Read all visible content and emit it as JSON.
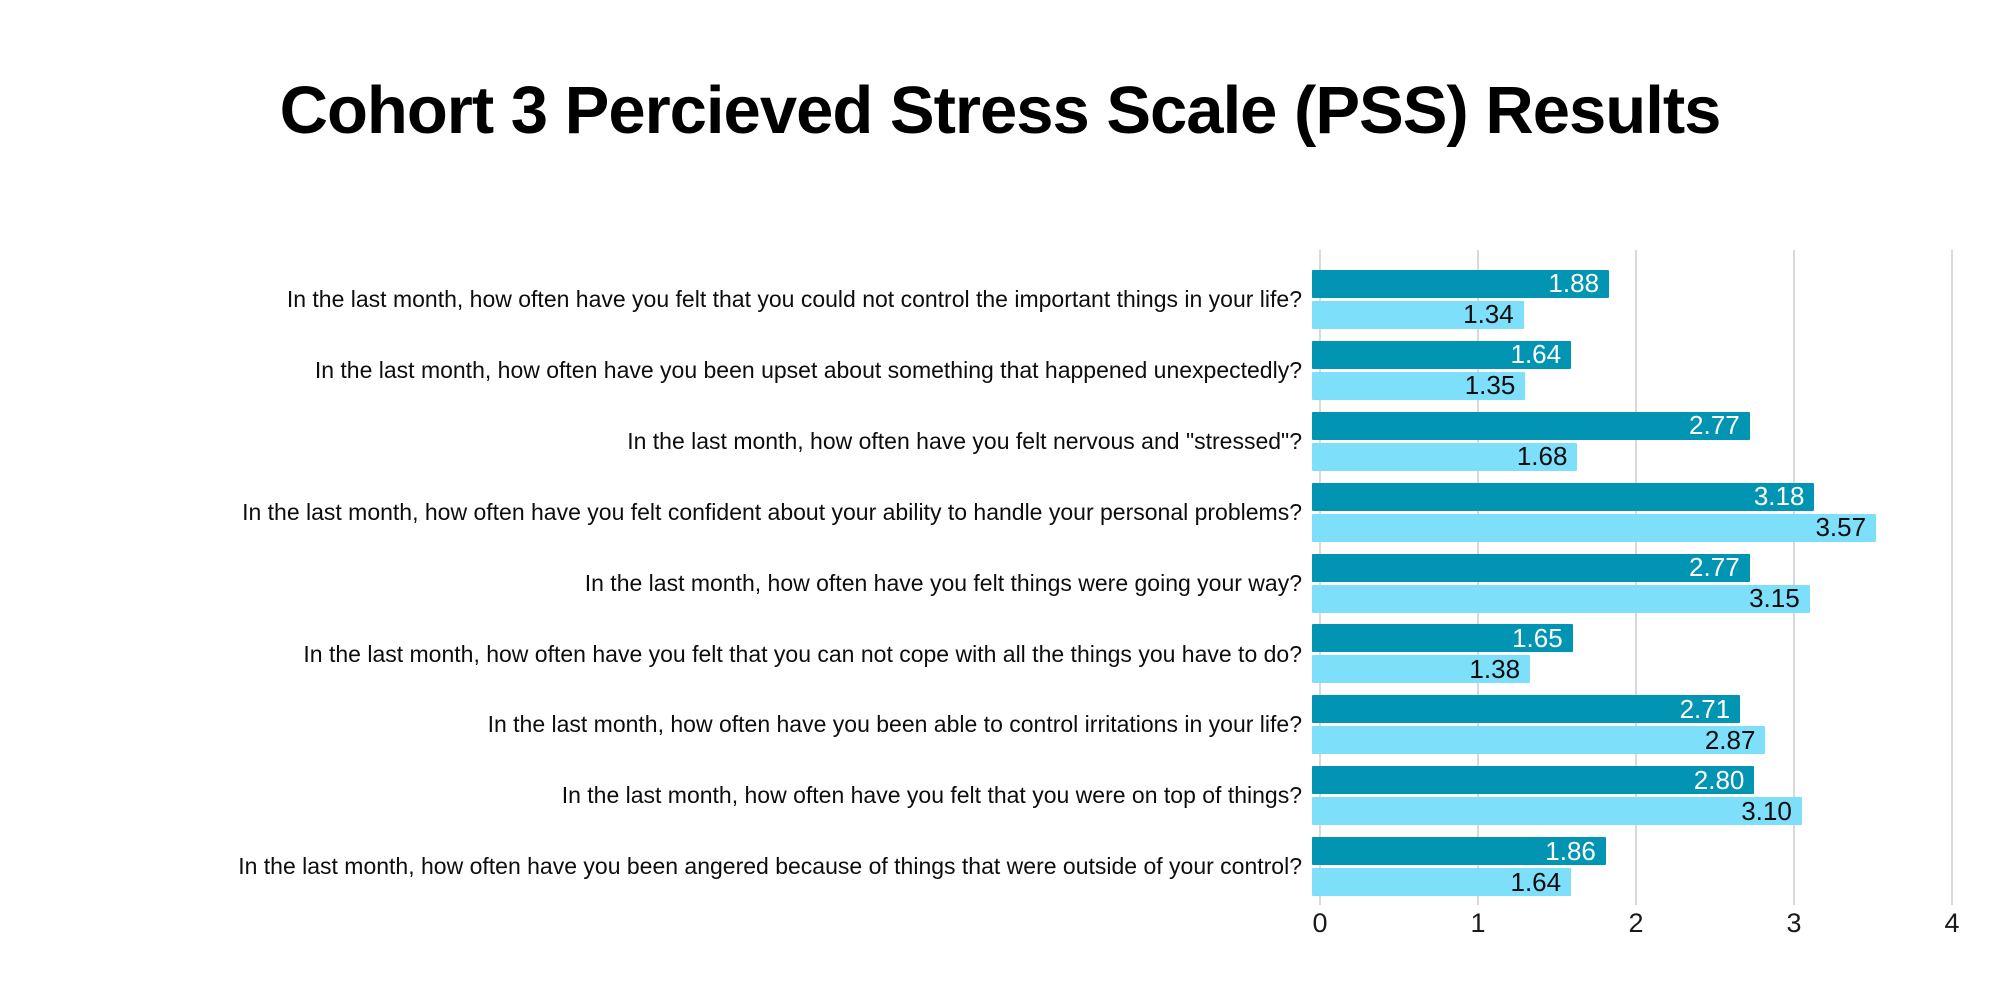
{
  "title": "Cohort 3 Percieved Stress Scale (PSS) Results",
  "colors": {
    "series_dark_teal": "#0295b3",
    "series_light_blue": "#7ddffa",
    "gridline": "#d9d9d9",
    "title_text": "#000000",
    "label_text": "#0d0d0d",
    "value_on_dark": "#ffffff",
    "value_on_light": "#0d0d0d",
    "background": "#ffffff"
  },
  "chart_data": {
    "type": "bar",
    "orientation": "horizontal",
    "title": "Cohort 3 Percieved Stress Scale (PSS) Results",
    "xlabel": "",
    "ylabel": "",
    "xlim": [
      0,
      4
    ],
    "x_ticks": [
      "0",
      "1",
      "2",
      "3",
      "4"
    ],
    "grid": true,
    "legend": "none",
    "categories": [
      "In the last month, how often have you felt that you could not control the important things in your life?",
      "In the last month, how often have you been upset about something that happened unexpectedly?",
      "In the last month, how often have you felt nervous and \"stressed\"?",
      "In the last month, how often have you felt confident about your ability to handle your personal problems?",
      "In the last month, how often have you felt things were going your way?",
      "In the last month, how often have you felt that you can not cope with all the things you have to do?",
      "In the last month, how often have you been able to control irritations in your life?",
      "In the last month, how often have you felt that you were on top of things?",
      "In the last month, how often have you been angered because of things that were outside of your control?"
    ],
    "series": [
      {
        "name": "dark-teal-series",
        "color": "#0295b3",
        "values": [
          1.88,
          1.64,
          2.77,
          3.18,
          2.77,
          1.65,
          2.71,
          2.8,
          1.86
        ],
        "labels": [
          "1.88",
          "1.64",
          "2.77",
          "3.18",
          "2.77",
          "1.65",
          "2.71",
          "2.80",
          "1.86"
        ]
      },
      {
        "name": "light-blue-series",
        "color": "#7ddffa",
        "values": [
          1.34,
          1.35,
          1.68,
          3.57,
          3.15,
          1.38,
          2.87,
          3.1,
          1.64
        ],
        "labels": [
          "1.34",
          "1.35",
          "1.68",
          "3.57",
          "3.15",
          "1.38",
          "2.87",
          "3.10",
          "1.64"
        ]
      }
    ]
  }
}
